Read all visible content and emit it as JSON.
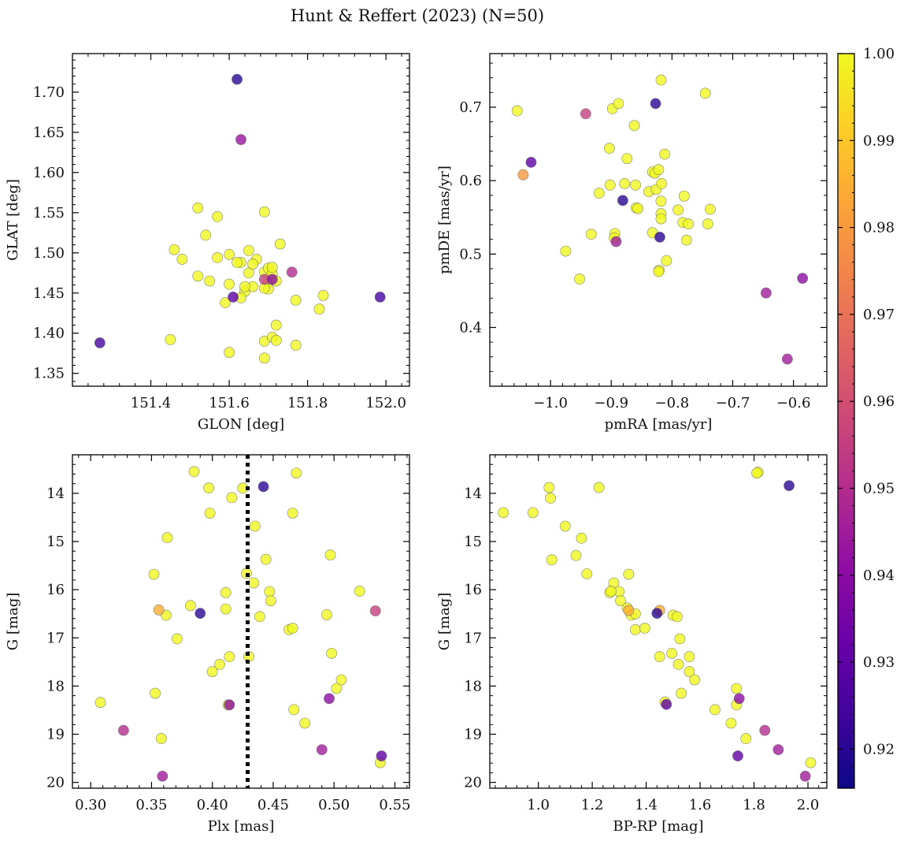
{
  "title": "Hunt & Reffert (2023) (N=50)",
  "colorbar": {
    "min": 0.9155,
    "max": 1.0,
    "ticks": [
      0.92,
      0.93,
      0.94,
      0.95,
      0.96,
      0.97,
      0.98,
      0.99,
      1.0
    ],
    "tick_labels": [
      "0.92",
      "0.93",
      "0.94",
      "0.95",
      "0.96",
      "0.97",
      "0.98",
      "0.99",
      "1.00"
    ],
    "colormap": "plasma"
  },
  "chart_data": [
    {
      "type": "scatter",
      "id": "glon-glat",
      "xlabel": "GLON [deg]",
      "ylabel": "GLAT [deg]",
      "xlim": [
        151.2,
        152.06
      ],
      "ylim": [
        1.334,
        1.748
      ],
      "y_inverted": false,
      "xticks": [
        151.4,
        151.6,
        151.8,
        152.0
      ],
      "xtick_labels": [
        "151.4",
        "151.6",
        "151.8",
        "152.0"
      ],
      "yticks": [
        1.35,
        1.4,
        1.45,
        1.5,
        1.55,
        1.6,
        1.65,
        1.7
      ],
      "ytick_labels": [
        "1.35",
        "1.40",
        "1.45",
        "1.50",
        "1.55",
        "1.60",
        "1.65",
        "1.70"
      ],
      "points": [
        [
          151.62,
          1.716,
          0.92
        ],
        [
          151.63,
          1.641,
          0.943
        ],
        [
          151.27,
          1.388,
          0.925
        ],
        [
          151.985,
          1.445,
          0.925
        ],
        [
          151.76,
          1.476,
          0.95
        ],
        [
          151.61,
          1.445,
          0.93
        ],
        [
          151.69,
          1.467,
          0.955
        ],
        [
          151.71,
          1.467,
          0.94
        ],
        [
          151.52,
          1.556,
          1
        ],
        [
          151.57,
          1.545,
          1
        ],
        [
          151.69,
          1.551,
          1
        ],
        [
          151.54,
          1.522,
          1
        ],
        [
          151.46,
          1.504,
          1
        ],
        [
          151.48,
          1.492,
          1
        ],
        [
          151.57,
          1.494,
          1
        ],
        [
          151.6,
          1.498,
          1
        ],
        [
          151.63,
          1.488,
          1
        ],
        [
          151.65,
          1.503,
          1
        ],
        [
          151.67,
          1.492,
          1
        ],
        [
          151.73,
          1.511,
          1
        ],
        [
          151.52,
          1.471,
          1
        ],
        [
          151.6,
          1.461,
          1
        ],
        [
          151.64,
          1.452,
          1
        ],
        [
          151.65,
          1.475,
          1
        ],
        [
          151.66,
          1.458,
          1
        ],
        [
          151.69,
          1.476,
          1
        ],
        [
          151.7,
          1.481,
          1
        ],
        [
          151.71,
          1.474,
          1
        ],
        [
          151.7,
          1.463,
          1
        ],
        [
          151.7,
          1.455,
          1
        ],
        [
          151.71,
          1.482,
          1
        ],
        [
          151.59,
          1.438,
          1
        ],
        [
          151.63,
          1.444,
          1
        ],
        [
          151.77,
          1.441,
          1
        ],
        [
          151.84,
          1.447,
          1
        ],
        [
          151.83,
          1.43,
          1
        ],
        [
          151.45,
          1.392,
          1
        ],
        [
          151.6,
          1.376,
          1
        ],
        [
          151.69,
          1.39,
          1
        ],
        [
          151.71,
          1.395,
          1
        ],
        [
          151.72,
          1.391,
          1
        ],
        [
          151.72,
          1.41,
          1
        ],
        [
          151.77,
          1.385,
          1
        ],
        [
          151.69,
          1.369,
          1
        ],
        [
          151.69,
          1.456,
          1
        ],
        [
          151.62,
          1.488,
          1
        ],
        [
          151.66,
          1.486,
          1
        ],
        [
          151.72,
          1.465,
          1
        ],
        [
          151.55,
          1.465,
          1
        ],
        [
          151.64,
          1.458,
          1
        ]
      ]
    },
    {
      "type": "scatter",
      "id": "pmra-pmde",
      "xlabel": "pmRA [mas/yr]",
      "ylabel": "pmDE [mas/yr]",
      "xlim": [
        -1.1,
        -0.545
      ],
      "ylim": [
        0.32,
        0.773
      ],
      "y_inverted": false,
      "xticks": [
        -1.0,
        -0.9,
        -0.8,
        -0.7,
        -0.6
      ],
      "xtick_labels": [
        "−1.0",
        "−0.9",
        "−0.8",
        "−0.7",
        "−0.6"
      ],
      "yticks": [
        0.4,
        0.5,
        0.6,
        0.7
      ],
      "ytick_labels": [
        "0.4",
        "0.5",
        "0.6",
        "0.7"
      ],
      "points": [
        [
          -1.055,
          0.695,
          1
        ],
        [
          -0.942,
          0.691,
          0.955
        ],
        [
          -1.045,
          0.608,
          0.98
        ],
        [
          -1.032,
          0.625,
          0.93
        ],
        [
          -0.827,
          0.705,
          0.92
        ],
        [
          -0.818,
          0.737,
          1
        ],
        [
          -0.745,
          0.719,
          1
        ],
        [
          -0.898,
          0.698,
          1
        ],
        [
          -0.888,
          0.705,
          1
        ],
        [
          -0.862,
          0.675,
          1
        ],
        [
          -0.903,
          0.644,
          1
        ],
        [
          -0.874,
          0.63,
          1
        ],
        [
          -0.812,
          0.636,
          1
        ],
        [
          -0.832,
          0.612,
          1
        ],
        [
          -0.828,
          0.61,
          1
        ],
        [
          -0.822,
          0.615,
          1
        ],
        [
          -0.902,
          0.594,
          1
        ],
        [
          -0.92,
          0.583,
          1
        ],
        [
          -0.878,
          0.596,
          1
        ],
        [
          -0.86,
          0.594,
          1
        ],
        [
          -0.838,
          0.585,
          1
        ],
        [
          -0.826,
          0.588,
          1
        ],
        [
          -0.817,
          0.596,
          1
        ],
        [
          -0.818,
          0.572,
          1
        ],
        [
          -0.818,
          0.555,
          1
        ],
        [
          -0.818,
          0.548,
          1
        ],
        [
          -0.78,
          0.579,
          1
        ],
        [
          -0.859,
          0.563,
          1
        ],
        [
          -0.856,
          0.562,
          1
        ],
        [
          -0.782,
          0.543,
          1
        ],
        [
          -0.773,
          0.541,
          1
        ],
        [
          -0.741,
          0.541,
          1
        ],
        [
          -0.737,
          0.561,
          1
        ],
        [
          -0.776,
          0.519,
          1
        ],
        [
          -0.881,
          0.573,
          0.92
        ],
        [
          -0.82,
          0.523,
          0.92
        ],
        [
          -0.933,
          0.527,
          1
        ],
        [
          -0.894,
          0.528,
          1
        ],
        [
          -0.895,
          0.522,
          1
        ],
        [
          -0.832,
          0.529,
          1
        ],
        [
          -0.892,
          0.517,
          0.945
        ],
        [
          -0.975,
          0.504,
          1
        ],
        [
          -0.809,
          0.491,
          1
        ],
        [
          -0.821,
          0.478,
          1
        ],
        [
          -0.822,
          0.476,
          1
        ],
        [
          -0.952,
          0.466,
          1
        ],
        [
          -0.645,
          0.447,
          0.945
        ],
        [
          -0.585,
          0.467,
          0.94
        ],
        [
          -0.61,
          0.357,
          0.945
        ],
        [
          -0.79,
          0.56,
          1
        ]
      ]
    },
    {
      "type": "scatter",
      "id": "plx-g",
      "xlabel": "Plx [mas]",
      "ylabel": "G [mag]",
      "xlim": [
        0.285,
        0.562
      ],
      "ylim": [
        13.2,
        20.12
      ],
      "y_inverted": true,
      "xticks": [
        0.3,
        0.35,
        0.4,
        0.45,
        0.5,
        0.55
      ],
      "xtick_labels": [
        "0.30",
        "0.35",
        "0.40",
        "0.45",
        "0.50",
        "0.55"
      ],
      "yticks": [
        14,
        15,
        16,
        17,
        18,
        19,
        20
      ],
      "ytick_labels": [
        "14",
        "15",
        "16",
        "17",
        "18",
        "19",
        "20"
      ],
      "vline": {
        "x": 0.429,
        "style": "dotted"
      },
      "points": [
        [
          0.385,
          13.55,
          1
        ],
        [
          0.469,
          13.58,
          1
        ],
        [
          0.442,
          13.86,
          0.92
        ],
        [
          0.397,
          13.89,
          1
        ],
        [
          0.425,
          13.89,
          1
        ],
        [
          0.416,
          14.09,
          1
        ],
        [
          0.398,
          14.41,
          1
        ],
        [
          0.466,
          14.41,
          1
        ],
        [
          0.435,
          14.68,
          1
        ],
        [
          0.363,
          14.92,
          1
        ],
        [
          0.444,
          15.37,
          1
        ],
        [
          0.497,
          15.28,
          1
        ],
        [
          0.352,
          15.68,
          1
        ],
        [
          0.428,
          15.66,
          1
        ],
        [
          0.434,
          15.86,
          1
        ],
        [
          0.411,
          16.06,
          1
        ],
        [
          0.447,
          16.04,
          1
        ],
        [
          0.521,
          16.03,
          1
        ],
        [
          0.448,
          16.23,
          1
        ],
        [
          0.382,
          16.33,
          1
        ],
        [
          0.411,
          16.4,
          1
        ],
        [
          0.356,
          16.42,
          0.985
        ],
        [
          0.362,
          16.53,
          1
        ],
        [
          0.39,
          16.49,
          0.92
        ],
        [
          0.534,
          16.44,
          0.955
        ],
        [
          0.439,
          16.56,
          1
        ],
        [
          0.494,
          16.52,
          1
        ],
        [
          0.463,
          16.83,
          1
        ],
        [
          0.466,
          16.8,
          1
        ],
        [
          0.371,
          17.02,
          1
        ],
        [
          0.498,
          17.32,
          1
        ],
        [
          0.414,
          17.39,
          1
        ],
        [
          0.43,
          17.39,
          1
        ],
        [
          0.406,
          17.55,
          1
        ],
        [
          0.4,
          17.7,
          1
        ],
        [
          0.506,
          17.87,
          1
        ],
        [
          0.502,
          18.05,
          1
        ],
        [
          0.353,
          18.15,
          1
        ],
        [
          0.308,
          18.34,
          1
        ],
        [
          0.413,
          18.39,
          1
        ],
        [
          0.414,
          18.39,
          0.94
        ],
        [
          0.496,
          18.26,
          0.94
        ],
        [
          0.467,
          18.49,
          1
        ],
        [
          0.476,
          18.77,
          1
        ],
        [
          0.327,
          18.92,
          0.95
        ],
        [
          0.358,
          19.09,
          1
        ],
        [
          0.49,
          19.32,
          0.945
        ],
        [
          0.539,
          19.45,
          0.93
        ],
        [
          0.538,
          19.59,
          1
        ],
        [
          0.359,
          19.87,
          0.945
        ]
      ]
    },
    {
      "type": "scatter",
      "id": "bprp-g",
      "xlabel": "BP-RP [mag]",
      "ylabel": "G [mag]",
      "xlim": [
        0.82,
        2.07
      ],
      "ylim": [
        13.2,
        20.12
      ],
      "y_inverted": true,
      "xticks": [
        1.0,
        1.2,
        1.4,
        1.6,
        1.8,
        2.0
      ],
      "xtick_labels": [
        "1.0",
        "1.2",
        "1.4",
        "1.6",
        "1.8",
        "2.0"
      ],
      "yticks": [
        14,
        15,
        16,
        17,
        18,
        19,
        20
      ],
      "ytick_labels": [
        "14",
        "15",
        "16",
        "17",
        "18",
        "19",
        "20"
      ],
      "points": [
        [
          1.815,
          13.56,
          1
        ],
        [
          1.81,
          13.58,
          1
        ],
        [
          1.93,
          13.84,
          0.92
        ],
        [
          1.04,
          13.88,
          1
        ],
        [
          1.045,
          14.1,
          1
        ],
        [
          1.225,
          13.88,
          1
        ],
        [
          0.87,
          14.4,
          1
        ],
        [
          0.98,
          14.4,
          1
        ],
        [
          1.1,
          14.68,
          1
        ],
        [
          1.16,
          14.93,
          1
        ],
        [
          1.05,
          15.38,
          1
        ],
        [
          1.14,
          15.29,
          1
        ],
        [
          1.18,
          15.67,
          1
        ],
        [
          1.335,
          15.68,
          1
        ],
        [
          1.28,
          15.86,
          1
        ],
        [
          1.3,
          16.04,
          1
        ],
        [
          1.265,
          16.06,
          1
        ],
        [
          1.27,
          16.03,
          1
        ],
        [
          1.305,
          16.23,
          1
        ],
        [
          1.33,
          16.38,
          1
        ],
        [
          1.335,
          16.43,
          0.985
        ],
        [
          1.345,
          16.53,
          1
        ],
        [
          1.36,
          16.5,
          1
        ],
        [
          1.44,
          16.49,
          0.92
        ],
        [
          1.45,
          16.43,
          0.985
        ],
        [
          1.5,
          16.53,
          1
        ],
        [
          1.515,
          16.56,
          1
        ],
        [
          1.36,
          16.83,
          1
        ],
        [
          1.395,
          16.8,
          1
        ],
        [
          1.525,
          17.02,
          1
        ],
        [
          1.495,
          17.32,
          1
        ],
        [
          1.45,
          17.39,
          1
        ],
        [
          1.56,
          17.39,
          1
        ],
        [
          1.52,
          17.55,
          1
        ],
        [
          1.56,
          17.7,
          1
        ],
        [
          1.58,
          17.87,
          1
        ],
        [
          1.735,
          18.05,
          1
        ],
        [
          1.53,
          18.15,
          1
        ],
        [
          1.745,
          18.26,
          0.94
        ],
        [
          1.735,
          18.39,
          1
        ],
        [
          1.47,
          18.33,
          1
        ],
        [
          1.475,
          18.38,
          0.93
        ],
        [
          1.655,
          18.49,
          1
        ],
        [
          1.715,
          18.77,
          1
        ],
        [
          1.84,
          18.92,
          0.95
        ],
        [
          1.77,
          19.09,
          1
        ],
        [
          1.89,
          19.32,
          0.945
        ],
        [
          1.74,
          19.45,
          0.93
        ],
        [
          2.01,
          19.59,
          1
        ],
        [
          1.99,
          19.87,
          0.945
        ]
      ]
    }
  ]
}
